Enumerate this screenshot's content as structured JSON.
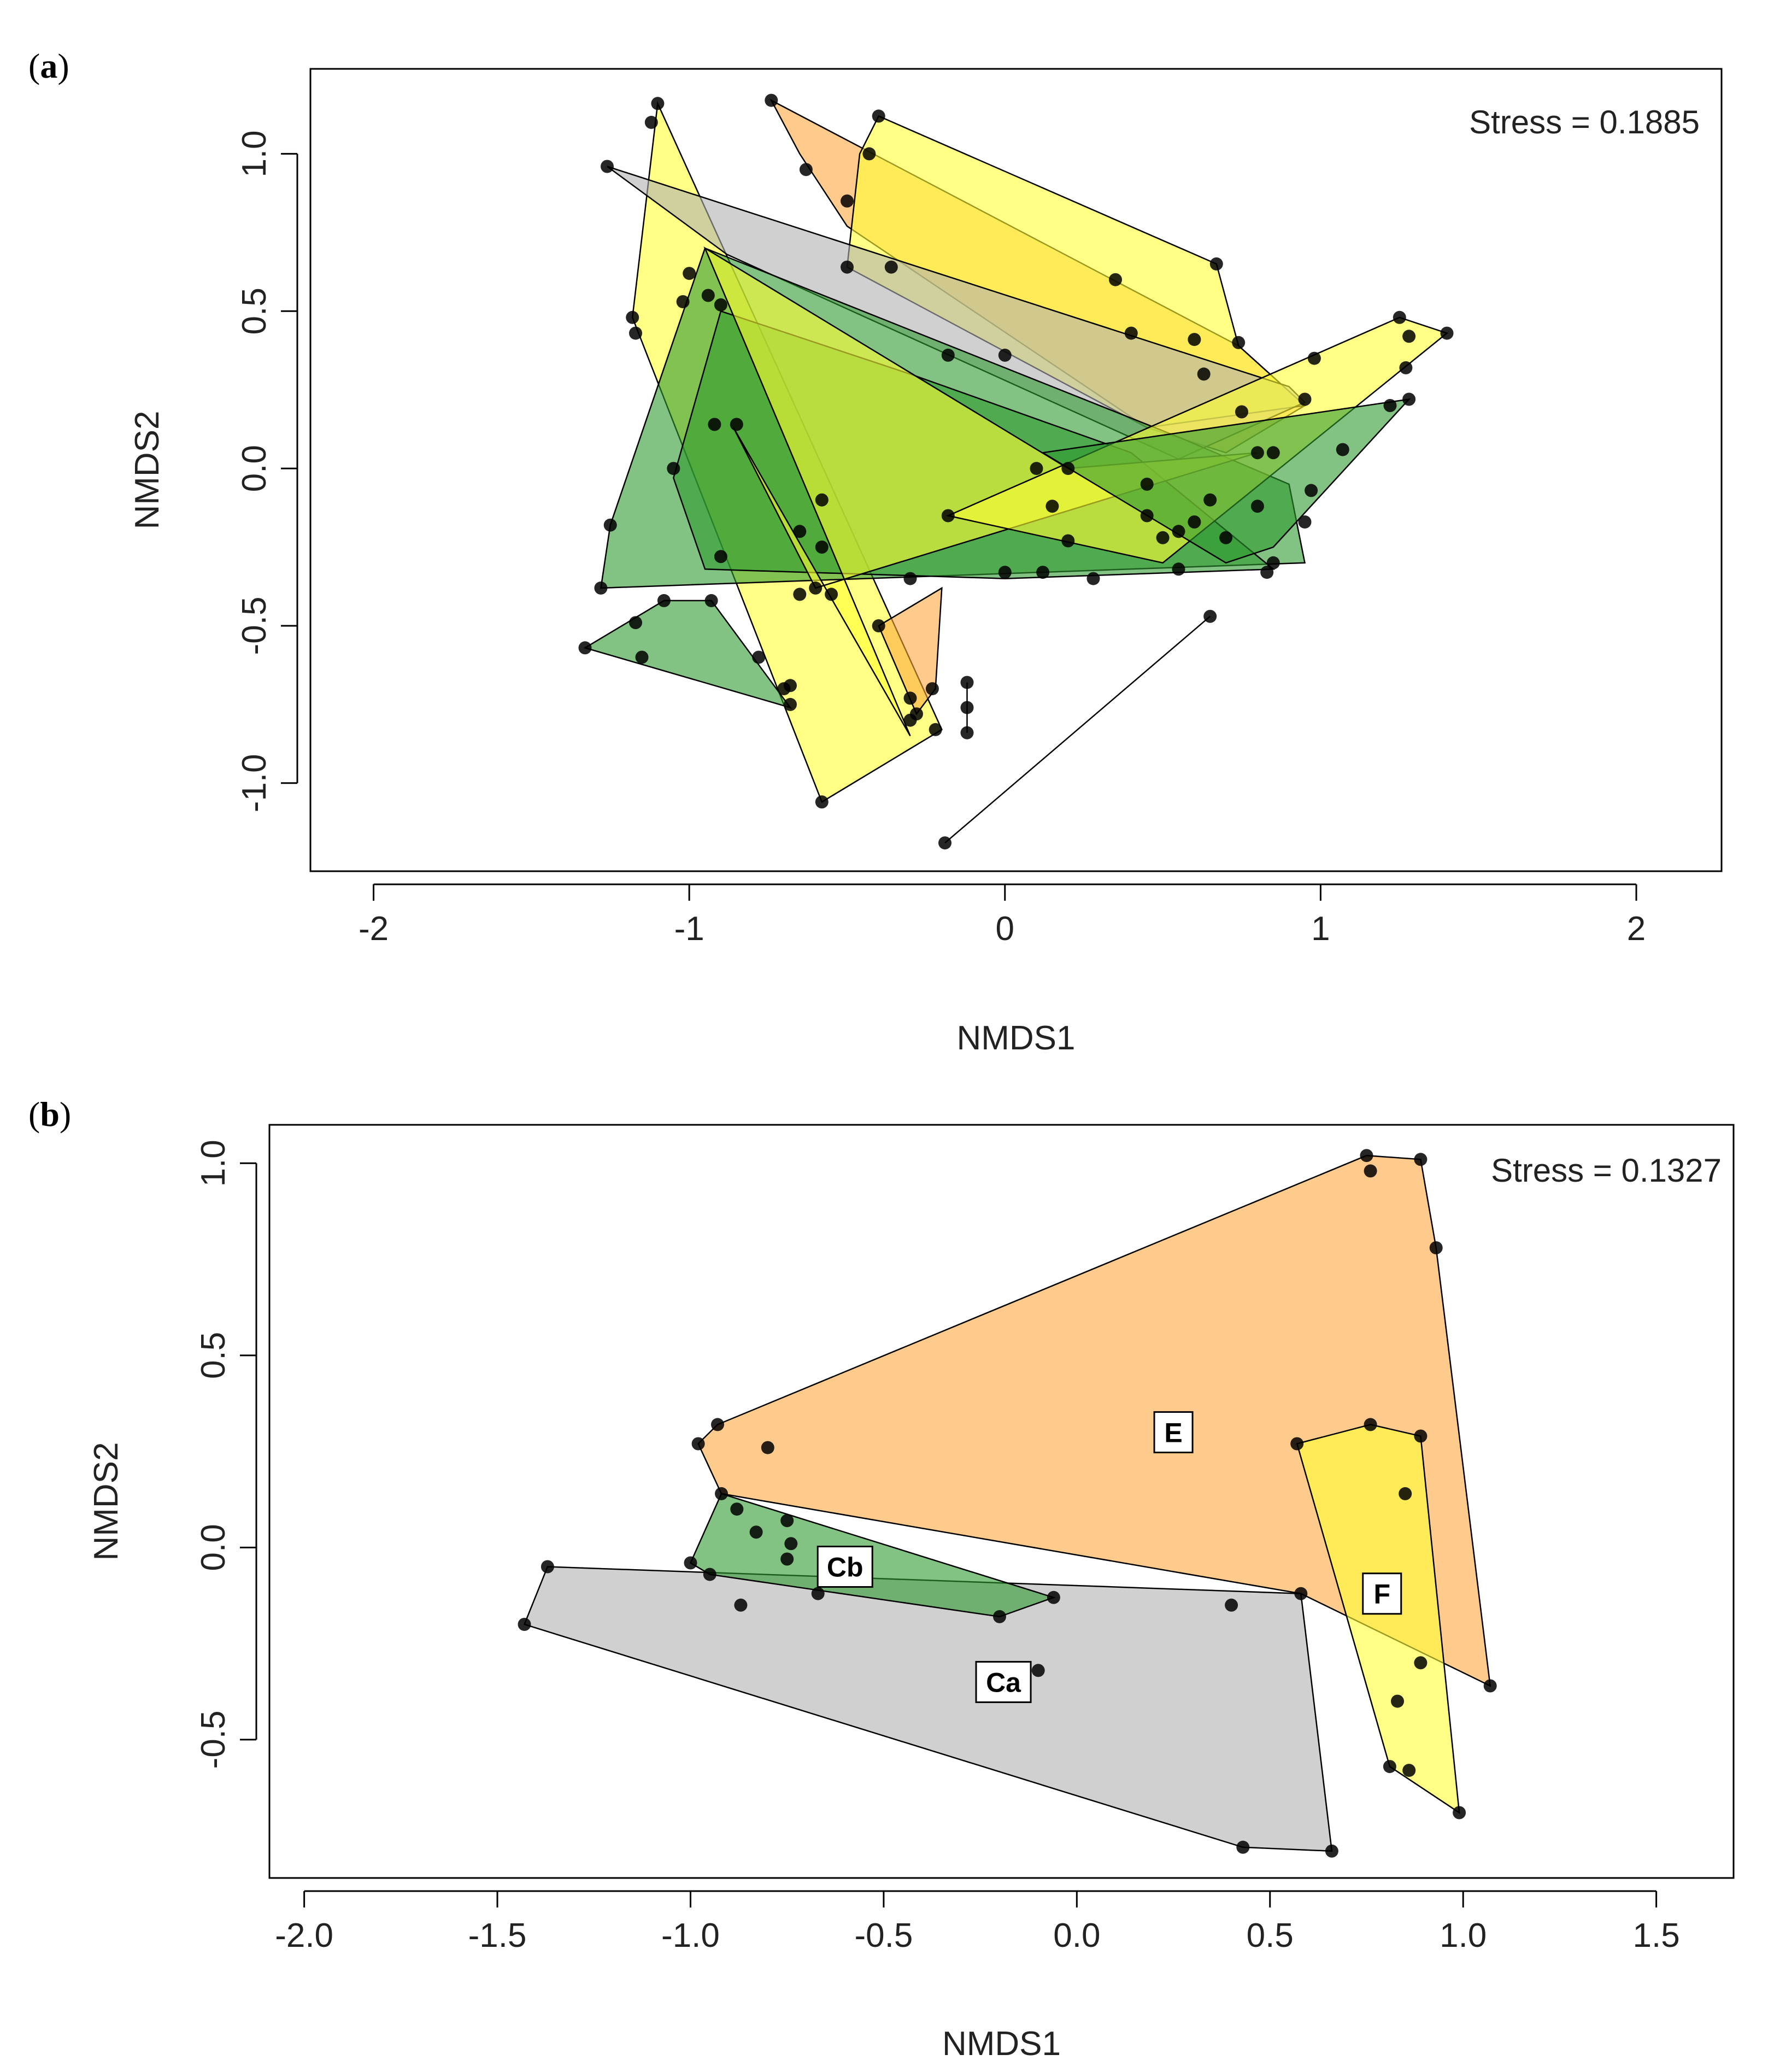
{
  "chart_data": [
    {
      "panel": "(a)",
      "panel_letter": "a",
      "type": "scatter",
      "subtype": "nmds-ordination-hulls",
      "xlabel": "NMDS1",
      "ylabel": "NMDS2",
      "xlim": [
        -2.2,
        2.27
      ],
      "ylim": [
        -1.28,
        1.27
      ],
      "xticks": [
        -2,
        -1,
        0,
        1,
        2
      ],
      "xtick_labels": [
        "-2",
        "-1",
        "0",
        "1",
        "2"
      ],
      "yticks": [
        -1.0,
        -0.5,
        0.0,
        0.5,
        1.0
      ],
      "ytick_labels": [
        "-1.0",
        "-0.5",
        "0.0",
        "0.5",
        "1.0"
      ],
      "stress_label": "Stress = 0.1885",
      "colors": {
        "green": "#2e9a2e",
        "yellow": "#ffff33",
        "orange": "#ffa940",
        "grey": "#b0b0b0"
      },
      "hulls": [
        {
          "name": "yellow-tall-left",
          "color": "yellow",
          "points": [
            [
              -1.1,
              1.16
            ],
            [
              -0.2,
              -0.83
            ],
            [
              -0.58,
              -1.06
            ],
            [
              -1.18,
              0.48
            ]
          ]
        },
        {
          "name": "orange-top-band",
          "color": "orange",
          "points": [
            [
              -0.74,
              1.17
            ],
            [
              0.74,
              0.39
            ],
            [
              0.95,
              0.2
            ],
            [
              0.7,
              0.05
            ],
            [
              0.45,
              0.13
            ],
            [
              -0.5,
              0.77
            ],
            [
              -0.65,
              1.0
            ]
          ]
        },
        {
          "name": "yellow-top-band",
          "color": "yellow",
          "points": [
            [
              -0.4,
              1.12
            ],
            [
              0.67,
              0.65
            ],
            [
              0.74,
              0.39
            ],
            [
              0.95,
              0.2
            ],
            [
              0.45,
              0.13
            ],
            [
              -0.5,
              0.64
            ],
            [
              -0.46,
              1.0
            ]
          ]
        },
        {
          "name": "grey-diagonal",
          "color": "grey",
          "points": [
            [
              -1.26,
              0.96
            ],
            [
              -0.88,
              0.68
            ],
            [
              0.55,
              0.03
            ],
            [
              0.95,
              0.21
            ],
            [
              0.9,
              0.26
            ]
          ]
        },
        {
          "name": "green-large",
          "color": "green",
          "points": [
            [
              -0.95,
              0.7
            ],
            [
              0.55,
              0.1
            ],
            [
              0.9,
              -0.05
            ],
            [
              0.95,
              -0.3
            ],
            [
              -1.28,
              -0.38
            ],
            [
              -1.25,
              -0.18
            ]
          ]
        },
        {
          "name": "green-mid",
          "color": "green",
          "points": [
            [
              -0.9,
              0.5
            ],
            [
              -0.3,
              0.3
            ],
            [
              0.4,
              0.05
            ],
            [
              0.85,
              -0.32
            ],
            [
              0.0,
              -0.35
            ],
            [
              -0.95,
              -0.32
            ],
            [
              -1.05,
              -0.03
            ]
          ]
        },
        {
          "name": "yellow-big-triangle",
          "color": "yellow",
          "points": [
            [
              -0.95,
              0.7
            ],
            [
              -0.3,
              -0.85
            ],
            [
              -0.86,
              0.13
            ],
            [
              -0.6,
              -0.38
            ],
            [
              0.8,
              0.05
            ],
            [
              0.2,
              0.0
            ]
          ]
        },
        {
          "name": "yellow-right-arrow",
          "color": "yellow",
          "points": [
            [
              -0.18,
              -0.15
            ],
            [
              1.25,
              0.48
            ],
            [
              1.4,
              0.43
            ],
            [
              0.5,
              -0.3
            ]
          ]
        },
        {
          "name": "green-right",
          "color": "green",
          "points": [
            [
              0.12,
              0.05
            ],
            [
              1.28,
              0.22
            ],
            [
              0.85,
              -0.25
            ],
            [
              0.7,
              -0.3
            ]
          ]
        },
        {
          "name": "green-lower-left",
          "color": "green",
          "points": [
            [
              -1.33,
              -0.57
            ],
            [
              -1.08,
              -0.42
            ],
            [
              -0.93,
              -0.42
            ],
            [
              -0.68,
              -0.76
            ]
          ]
        },
        {
          "name": "orange-lower",
          "color": "orange",
          "points": [
            [
              -0.4,
              -0.5
            ],
            [
              -0.2,
              -0.38
            ],
            [
              -0.22,
              -0.7
            ],
            [
              -0.28,
              -0.78
            ]
          ]
        },
        {
          "name": "segment-lower-right",
          "color": "none",
          "points": [
            [
              -0.19,
              -1.19
            ],
            [
              0.65,
              -0.47
            ]
          ]
        },
        {
          "name": "segment-lower-center",
          "color": "none",
          "points": [
            [
              -0.12,
              -0.68
            ],
            [
              -0.12,
              -0.84
            ]
          ]
        }
      ],
      "points": [
        [
          -1.1,
          1.16
        ],
        [
          -1.12,
          1.1
        ],
        [
          -0.74,
          1.17
        ],
        [
          -0.4,
          1.12
        ],
        [
          -0.63,
          0.95
        ],
        [
          -0.43,
          1.0
        ],
        [
          -1.26,
          0.96
        ],
        [
          -0.5,
          0.85
        ],
        [
          -0.5,
          0.64
        ],
        [
          -0.36,
          0.64
        ],
        [
          0.67,
          0.65
        ],
        [
          0.35,
          0.6
        ],
        [
          0.74,
          0.4
        ],
        [
          0.4,
          0.43
        ],
        [
          0.6,
          0.41
        ],
        [
          0.63,
          0.3
        ],
        [
          -1.18,
          0.48
        ],
        [
          -1.17,
          0.43
        ],
        [
          -1.0,
          0.62
        ],
        [
          -1.02,
          0.53
        ],
        [
          -0.94,
          0.55
        ],
        [
          -0.9,
          0.52
        ],
        [
          -0.18,
          0.36
        ],
        [
          0.0,
          0.36
        ],
        [
          1.25,
          0.48
        ],
        [
          1.4,
          0.43
        ],
        [
          1.28,
          0.42
        ],
        [
          0.98,
          0.35
        ],
        [
          1.27,
          0.32
        ],
        [
          0.95,
          0.22
        ],
        [
          1.28,
          0.22
        ],
        [
          1.22,
          0.2
        ],
        [
          0.75,
          0.18
        ],
        [
          -0.92,
          0.14
        ],
        [
          -0.85,
          0.14
        ],
        [
          1.07,
          0.06
        ],
        [
          0.85,
          0.05
        ],
        [
          0.8,
          0.05
        ],
        [
          0.1,
          0.0
        ],
        [
          0.2,
          0.0
        ],
        [
          -1.05,
          0.0
        ],
        [
          0.45,
          -0.05
        ],
        [
          0.65,
          -0.1
        ],
        [
          0.97,
          -0.07
        ],
        [
          -0.58,
          -0.1
        ],
        [
          -0.18,
          -0.15
        ],
        [
          0.15,
          -0.12
        ],
        [
          0.45,
          -0.15
        ],
        [
          0.8,
          -0.12
        ],
        [
          0.95,
          -0.17
        ],
        [
          0.6,
          -0.17
        ],
        [
          0.55,
          -0.2
        ],
        [
          -1.25,
          -0.18
        ],
        [
          -0.65,
          -0.2
        ],
        [
          0.5,
          -0.22
        ],
        [
          0.2,
          -0.23
        ],
        [
          0.7,
          -0.22
        ],
        [
          -0.58,
          -0.25
        ],
        [
          -0.9,
          -0.28
        ],
        [
          0.55,
          -0.32
        ],
        [
          0.85,
          -0.3
        ],
        [
          0.83,
          -0.33
        ],
        [
          0.0,
          -0.33
        ],
        [
          0.12,
          -0.33
        ],
        [
          -0.3,
          -0.35
        ],
        [
          0.28,
          -0.35
        ],
        [
          -1.28,
          -0.38
        ],
        [
          -0.6,
          -0.38
        ],
        [
          -0.65,
          -0.4
        ],
        [
          -0.55,
          -0.4
        ],
        [
          -0.93,
          -0.42
        ],
        [
          -1.08,
          -0.42
        ],
        [
          -1.17,
          -0.49
        ],
        [
          -0.4,
          -0.5
        ],
        [
          0.65,
          -0.47
        ],
        [
          -1.33,
          -0.57
        ],
        [
          -1.15,
          -0.6
        ],
        [
          -0.78,
          -0.6
        ],
        [
          -0.68,
          -0.69
        ],
        [
          -0.7,
          -0.7
        ],
        [
          -0.23,
          -0.7
        ],
        [
          -0.12,
          -0.68
        ],
        [
          -0.3,
          -0.73
        ],
        [
          -0.68,
          -0.75
        ],
        [
          -0.12,
          -0.76
        ],
        [
          -0.28,
          -0.78
        ],
        [
          -0.3,
          -0.8
        ],
        [
          -0.22,
          -0.83
        ],
        [
          -0.12,
          -0.84
        ],
        [
          -0.58,
          -1.06
        ],
        [
          -0.19,
          -1.19
        ]
      ]
    },
    {
      "panel": "(b)",
      "panel_letter": "b",
      "type": "scatter",
      "subtype": "nmds-ordination-hulls",
      "xlabel": "NMDS1",
      "ylabel": "NMDS2",
      "xlim": [
        -2.09,
        1.7
      ],
      "ylim": [
        -0.86,
        1.1
      ],
      "xticks": [
        -2.0,
        -1.5,
        -1.0,
        -0.5,
        0.0,
        0.5,
        1.0,
        1.5
      ],
      "xtick_labels": [
        "-2.0",
        "-1.5",
        "-1.0",
        "-0.5",
        "0.0",
        "0.5",
        "1.0",
        "1.5"
      ],
      "yticks": [
        -0.5,
        0.0,
        0.5,
        1.0
      ],
      "ytick_labels": [
        "-0.5",
        "0.0",
        "0.5",
        "1.0"
      ],
      "stress_label": "Stress = 0.1327",
      "colors": {
        "green": "#2e9a2e",
        "yellow": "#ffff33",
        "orange": "#ffa940",
        "grey": "#b0b0b0"
      },
      "hulls": [
        {
          "name": "Ca",
          "color": "grey",
          "label_pos": [
            -0.19,
            -0.35
          ],
          "points": [
            [
              -1.37,
              -0.05
            ],
            [
              0.58,
              -0.12
            ],
            [
              0.66,
              -0.79
            ],
            [
              0.43,
              -0.78
            ],
            [
              -1.43,
              -0.2
            ]
          ]
        },
        {
          "name": "Cb",
          "color": "green",
          "label_pos": [
            -0.6,
            -0.05
          ],
          "points": [
            [
              -0.92,
              0.14
            ],
            [
              -0.06,
              -0.13
            ],
            [
              -0.2,
              -0.18
            ],
            [
              -0.95,
              -0.07
            ],
            [
              -1.0,
              -0.04
            ]
          ]
        },
        {
          "name": "E",
          "color": "orange",
          "label_pos": [
            0.25,
            0.3
          ],
          "points": [
            [
              -0.98,
              0.27
            ],
            [
              -0.93,
              0.32
            ],
            [
              0.75,
              1.02
            ],
            [
              0.89,
              1.01
            ],
            [
              0.93,
              0.78
            ],
            [
              1.07,
              -0.36
            ],
            [
              0.58,
              -0.12
            ],
            [
              -0.92,
              0.14
            ]
          ]
        },
        {
          "name": "F",
          "color": "yellow",
          "label_pos": [
            0.79,
            -0.12
          ],
          "points": [
            [
              0.57,
              0.27
            ],
            [
              0.76,
              0.32
            ],
            [
              0.89,
              0.29
            ],
            [
              0.99,
              -0.69
            ],
            [
              0.81,
              -0.57
            ]
          ]
        }
      ],
      "group_labels": [
        "E",
        "Cb",
        "Ca",
        "F"
      ],
      "points": [
        [
          0.75,
          1.02
        ],
        [
          0.76,
          0.98
        ],
        [
          0.89,
          1.01
        ],
        [
          0.93,
          0.78
        ],
        [
          -0.98,
          0.27
        ],
        [
          -0.93,
          0.32
        ],
        [
          -0.8,
          0.26
        ],
        [
          0.57,
          0.27
        ],
        [
          0.76,
          0.32
        ],
        [
          0.89,
          0.29
        ],
        [
          0.85,
          0.14
        ],
        [
          -0.92,
          0.14
        ],
        [
          -0.88,
          0.1
        ],
        [
          -0.83,
          0.04
        ],
        [
          -0.75,
          0.07
        ],
        [
          -0.74,
          0.01
        ],
        [
          -0.75,
          -0.03
        ],
        [
          -1.0,
          -0.04
        ],
        [
          -0.95,
          -0.07
        ],
        [
          -0.67,
          -0.12
        ],
        [
          -0.06,
          -0.13
        ],
        [
          -0.2,
          -0.18
        ],
        [
          -0.87,
          -0.15
        ],
        [
          -1.37,
          -0.05
        ],
        [
          -1.43,
          -0.2
        ],
        [
          0.58,
          -0.12
        ],
        [
          0.4,
          -0.15
        ],
        [
          0.89,
          -0.3
        ],
        [
          1.07,
          -0.36
        ],
        [
          -0.1,
          -0.32
        ],
        [
          0.83,
          -0.4
        ],
        [
          0.81,
          -0.57
        ],
        [
          0.86,
          -0.58
        ],
        [
          0.99,
          -0.69
        ],
        [
          0.43,
          -0.78
        ],
        [
          0.66,
          -0.79
        ]
      ]
    }
  ]
}
